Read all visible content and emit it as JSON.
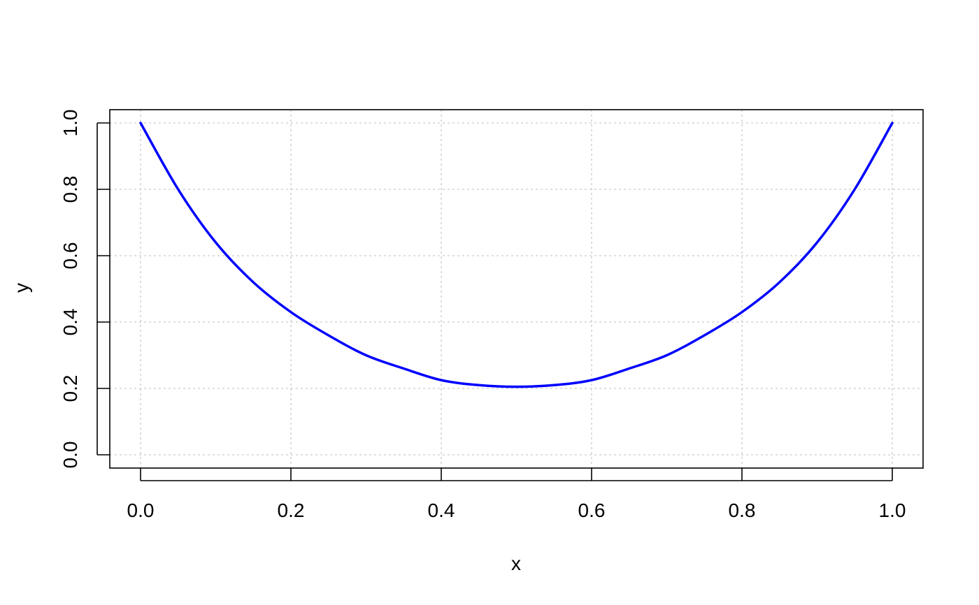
{
  "chart_data": {
    "type": "line",
    "title": "",
    "xlabel": "x",
    "ylabel": "y",
    "xlim": [
      0,
      1
    ],
    "ylim": [
      0,
      1
    ],
    "x_ticks": [
      "0.0",
      "0.2",
      "0.4",
      "0.6",
      "0.8",
      "1.0"
    ],
    "y_ticks": [
      "0.0",
      "0.2",
      "0.4",
      "0.6",
      "0.8",
      "1.0"
    ],
    "grid": true,
    "series": [
      {
        "color": "#0000ff",
        "x": [
          0.0,
          0.05,
          0.1,
          0.15,
          0.2,
          0.25,
          0.3,
          0.35,
          0.4,
          0.45,
          0.5,
          0.55,
          0.6,
          0.65,
          0.7,
          0.75,
          0.8,
          0.85,
          0.9,
          0.95,
          1.0
        ],
        "y": [
          1.0,
          0.8,
          0.64,
          0.52,
          0.43,
          0.36,
          0.3,
          0.26,
          0.225,
          0.21,
          0.205,
          0.21,
          0.225,
          0.26,
          0.3,
          0.36,
          0.43,
          0.52,
          0.64,
          0.8,
          1.0
        ]
      }
    ]
  }
}
